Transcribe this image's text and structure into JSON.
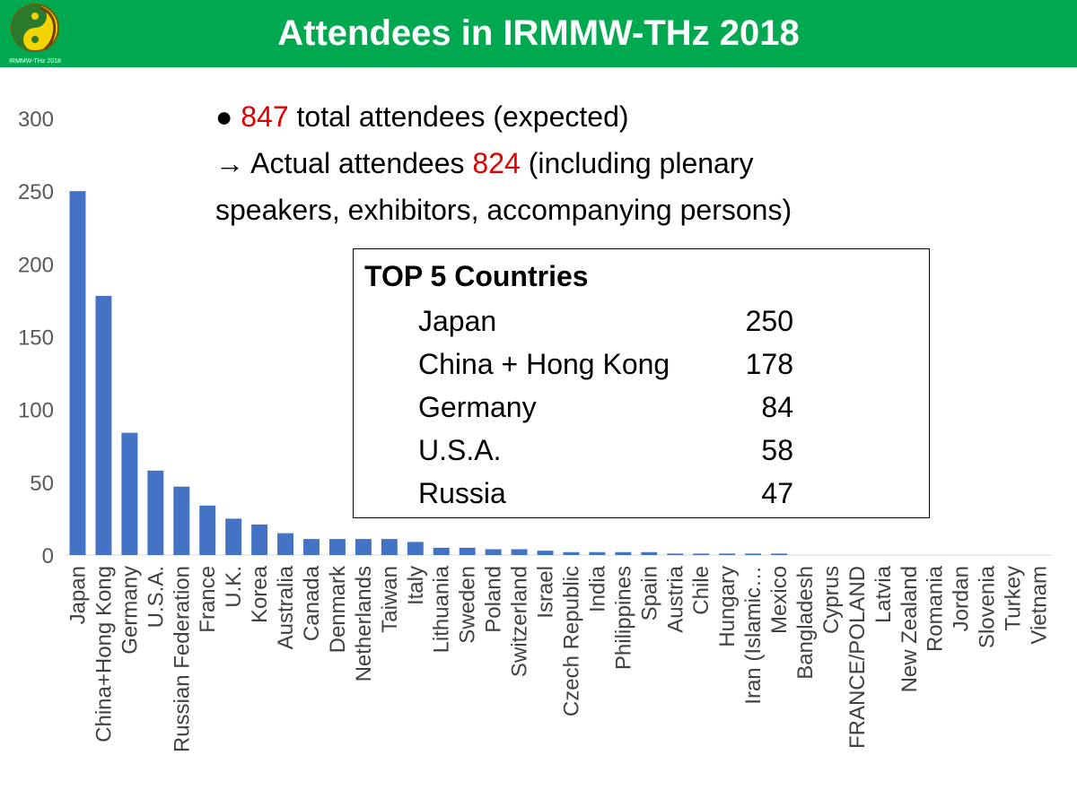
{
  "slide": {
    "title": "Attendees in IRMMW-THz 2018",
    "logo_text": "IRMMW-THz 2018"
  },
  "notes": {
    "bullet": "●",
    "line1_value": "847",
    "line1_rest": " total attendees (expected)",
    "line2_arrow": "→",
    "line2_pre": " Actual attendees ",
    "line2_value": "824",
    "line2_post": "  (including plenary",
    "line3": "speakers,  exhibitors, accompanying persons)"
  },
  "top5": {
    "title": "TOP 5 Countries",
    "rows": [
      {
        "name": "Japan",
        "value": "250"
      },
      {
        "name": "China + Hong Kong",
        "value": "178"
      },
      {
        "name": "Germany",
        "value": "84"
      },
      {
        "name": "U.S.A.",
        "value": "58"
      },
      {
        "name": "Russia",
        "value": "47"
      }
    ]
  },
  "colors": {
    "header_bg": "#00a94f",
    "bar": "#4472c4",
    "highlight": "#e00000"
  },
  "chart_data": {
    "type": "bar",
    "title": "",
    "xlabel": "",
    "ylabel": "",
    "ylim": [
      0,
      300
    ],
    "yticks": [
      0,
      50,
      100,
      150,
      200,
      250,
      300
    ],
    "grid": false,
    "categories": [
      "Japan",
      "China+Hong Kong",
      "Germany",
      "U.S.A.",
      "Russian Federation",
      "France",
      "U.K.",
      "Korea",
      "Australia",
      "Canada",
      "Denmark",
      "Netherlands",
      "Taiwan",
      "Italy",
      "Lithuania",
      "Sweden",
      "Poland",
      "Switzerland",
      "Israel",
      "Czech Republic",
      "India",
      "Philippines",
      "Spain",
      "Austria",
      "Chile",
      "Hungary",
      "Iran (Islamic…",
      "Mexico",
      "Bangladesh",
      "Cyprus",
      "FRANCE/POLAND",
      "Latvia",
      "New Zealand",
      "Romania",
      "Jordan",
      "Slovenia",
      "Turkey",
      "Vietnam"
    ],
    "values": [
      250,
      178,
      84,
      58,
      47,
      34,
      25,
      21,
      15,
      11,
      11,
      11,
      11,
      9,
      5,
      5,
      4,
      4,
      3,
      2,
      2,
      2,
      2,
      1,
      1,
      1,
      1,
      1,
      0,
      0,
      0,
      0,
      0,
      0,
      0,
      0,
      0,
      0
    ]
  }
}
